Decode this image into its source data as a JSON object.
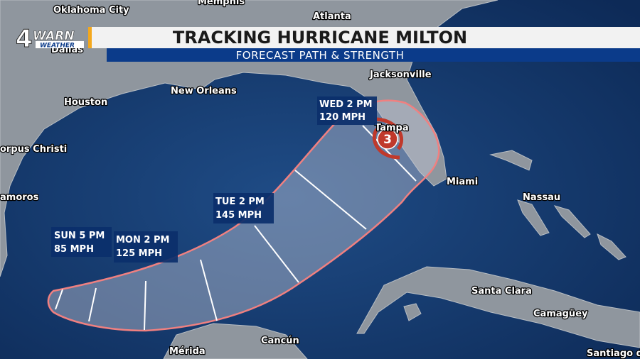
{
  "logo": {
    "number": "4",
    "name": "WARN",
    "sub": "WEATHER"
  },
  "header": {
    "title": "TRACKING HURRICANE MILTON",
    "subtitle": "FORECAST PATH & STRENGTH"
  },
  "cities": [
    "Oklahoma City",
    "Memphis",
    "Atlanta",
    "Dallas",
    "Houston",
    "New Orleans",
    "Jacksonville",
    "Tampa",
    "Miami",
    "orpus Christi",
    "amoros",
    "Nassau",
    "Santa Clara",
    "Camagüey",
    "Santiago d",
    "Mérida",
    "Cancún"
  ],
  "forecast_points": [
    {
      "time": "SUN 5 PM",
      "wind": "85 MPH"
    },
    {
      "time": "MON 2 PM",
      "wind": "125 MPH"
    },
    {
      "time": "TUE 2 PM",
      "wind": "145 MPH"
    },
    {
      "time": "WED 2 PM",
      "wind": "120 MPH"
    }
  ],
  "storm_category": "3"
}
